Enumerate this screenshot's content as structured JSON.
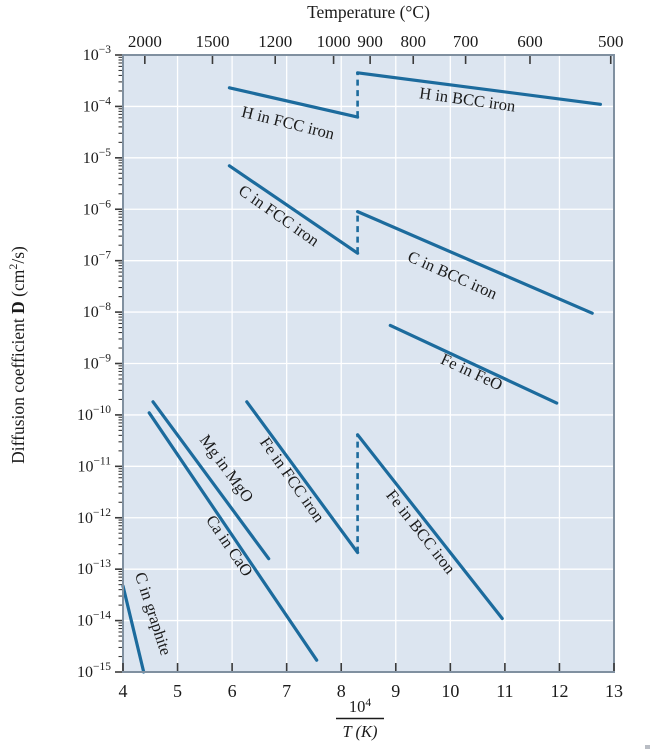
{
  "figure": {
    "kind": "arrhenius-diffusion-plot"
  },
  "chart_data": {
    "type": "line",
    "title": "Temperature (°C)",
    "ylabel_segments": [
      {
        "t": "Diffusion coefficient "
      },
      {
        "t": "D",
        "bold": true
      },
      {
        "t": " (cm"
      },
      {
        "t": "2",
        "sup": true
      },
      {
        "t": "/s)"
      }
    ],
    "xlabel_fraction": {
      "numerator_base": "10",
      "numerator_exp": "4",
      "denominator": "T (K)"
    },
    "x_axis": {
      "min": 4,
      "max": 13,
      "ticks": [
        4,
        5,
        6,
        7,
        8,
        9,
        10,
        11,
        12,
        13
      ]
    },
    "y_axis": {
      "scale": "log10",
      "base_label": "10",
      "exp_max": -3,
      "exp_min": -15,
      "tick_exponents": [
        -3,
        -4,
        -5,
        -6,
        -7,
        -8,
        -9,
        -10,
        -11,
        -12,
        -13,
        -14,
        -15
      ]
    },
    "top_axis": {
      "ticks": [
        {
          "label": "2000",
          "x": 4.4
        },
        {
          "label": "1500",
          "x": 5.64
        },
        {
          "label": "1200",
          "x": 6.79
        },
        {
          "label": "1000",
          "x": 7.86
        },
        {
          "label": "900",
          "x": 8.53
        },
        {
          "label": "800",
          "x": 9.32
        },
        {
          "label": "700",
          "x": 10.28
        },
        {
          "label": "600",
          "x": 11.46
        },
        {
          "label": "500",
          "x": 12.94
        }
      ]
    },
    "series": [
      {
        "name": "H in FCC iron",
        "points": [
          [
            5.95,
            0.00023
          ],
          [
            8.3,
            6.2e-05
          ]
        ],
        "label": {
          "text": "H in FCC iron",
          "x": 7.0,
          "D": 3.8e-05,
          "rot": 14
        }
      },
      {
        "name": "H in BCC iron",
        "points": [
          [
            8.3,
            0.00045
          ],
          [
            12.75,
            0.00011
          ]
        ],
        "label": {
          "text": "H in BCC iron",
          "x": 10.3,
          "D": 0.000107,
          "rot": 8
        }
      },
      {
        "name": "C in FCC iron",
        "points": [
          [
            5.95,
            7e-06
          ],
          [
            8.3,
            1.4e-07
          ]
        ],
        "label": {
          "text": "C in FCC iron",
          "x": 6.8,
          "D": 6.2e-07,
          "rot": 35
        }
      },
      {
        "name": "C in BCC iron",
        "points": [
          [
            8.3,
            9e-07
          ],
          [
            12.6,
            9.5e-09
          ]
        ],
        "label": {
          "text": "C in BCC iron",
          "x": 10.0,
          "D": 4.2e-08,
          "rot": 24
        }
      },
      {
        "name": "Fe in FeO",
        "points": [
          [
            8.9,
            5.5e-09
          ],
          [
            11.95,
            1.7e-10
          ]
        ],
        "label": {
          "text": "Fe in FeO",
          "x": 10.35,
          "D": 5.5e-10,
          "rot": 25
        }
      },
      {
        "name": "Fe in FCC iron",
        "points": [
          [
            6.27,
            1.8e-10
          ],
          [
            8.3,
            2.1e-13
          ]
        ],
        "label": {
          "text": "Fe in FCC iron",
          "x": 7.02,
          "D": 4.8e-12,
          "rot": 55
        }
      },
      {
        "name": "Fe in BCC iron",
        "points": [
          [
            8.3,
            4.1e-11
          ],
          [
            10.95,
            1.1e-14
          ]
        ],
        "label": {
          "text": "Fe in BCC iron",
          "x": 9.38,
          "D": 4.6e-13,
          "rot": 52
        }
      },
      {
        "name": "Mg in MgO",
        "points": [
          [
            4.55,
            1.8e-10
          ],
          [
            6.67,
            1.6e-13
          ]
        ],
        "label": {
          "text": "Mg in MgO",
          "x": 5.82,
          "D": 7.9e-12,
          "rot": 54
        }
      },
      {
        "name": "Ca in CaO",
        "points": [
          [
            4.48,
            1.1e-10
          ],
          [
            7.55,
            1.7e-15
          ]
        ],
        "label": {
          "text": "Ca in CaO",
          "x": 5.87,
          "D": 2.5e-13,
          "rot": 56
        }
      },
      {
        "name": "C in graphite",
        "points": [
          [
            4.0,
            4.7e-14
          ],
          [
            4.38,
            1e-15
          ]
        ],
        "label": {
          "text": "C in graphite",
          "x": 4.46,
          "D": 1.26e-14,
          "rot": 72
        }
      }
    ],
    "phase_transition_dashes": [
      {
        "x": 8.3,
        "D_from": 6.2e-05,
        "D_to": 0.00045,
        "between": "H in FCC iron / H in BCC iron"
      },
      {
        "x": 8.3,
        "D_from": 1.4e-07,
        "D_to": 9e-07,
        "between": "C in FCC iron / C in BCC iron"
      },
      {
        "x": 8.3,
        "D_from": 2.1e-13,
        "D_to": 4.1e-11,
        "between": "Fe in FCC iron / Fe in BCC iron"
      }
    ],
    "grid": {
      "horizontal_every_decade": true,
      "vertical_every_unit": true
    },
    "legend_position": "labels-on-curves",
    "colors": {
      "line": "#1c6b9d",
      "plot_bg": "#dce5f0",
      "grid": "#ffffff",
      "frame": "#8090a0",
      "tick": "#3a3a3a",
      "text": "#1b1b1b",
      "artifact": "#b9bdc4"
    }
  }
}
